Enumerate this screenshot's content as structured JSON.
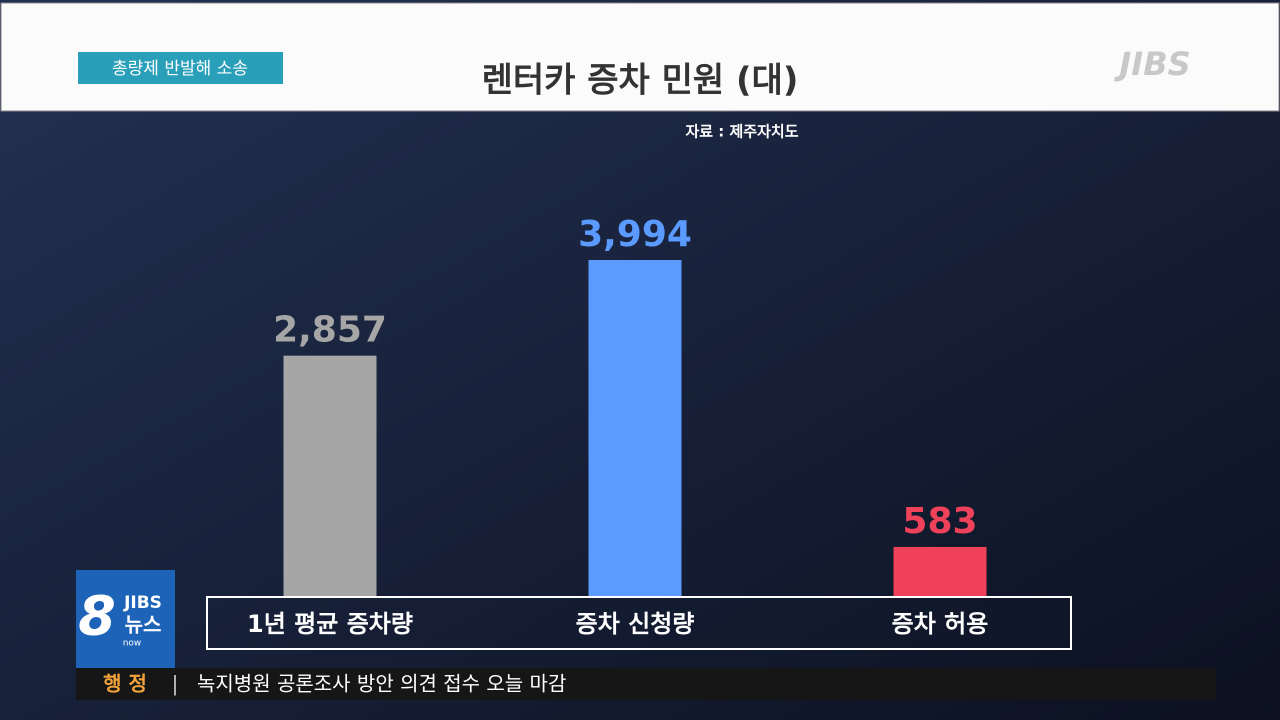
{
  "chart_data": {
    "type": "bar",
    "title": "렌터카 증차 민원 (대)",
    "source": "자료 : 제주자치도",
    "categories": [
      "1년 평균 증차량",
      "증차 신청량",
      "증차 허용"
    ],
    "values": [
      2857,
      3994,
      583
    ],
    "value_labels": [
      "2,857",
      "3,994",
      "583"
    ],
    "colors": [
      "#a6a6a6",
      "#5b9aff",
      "#ef4159"
    ]
  },
  "broadcast": {
    "tag": "총량제 반발해 소송",
    "logo": "JIBS",
    "badge": {
      "number": "8",
      "brand": "JIBS",
      "name": "뉴스",
      "sub": "now"
    },
    "ticker": {
      "section": "행 정",
      "separator": "|",
      "headline": "녹지병원 공론조사 방안 의견 접수 오늘 마감"
    }
  }
}
